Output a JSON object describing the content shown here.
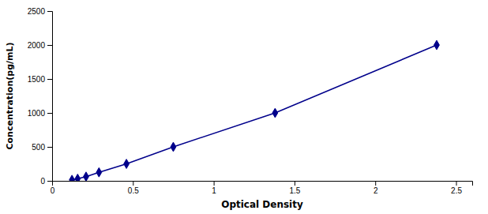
{
  "chart_data": {
    "type": "line",
    "x": [
      0.123,
      0.158,
      0.21,
      0.29,
      0.46,
      0.75,
      1.38,
      2.38
    ],
    "values": [
      15,
      31,
      62,
      125,
      250,
      500,
      1000,
      2000
    ],
    "color": "#00008B",
    "marker": "diamond",
    "xlabel": "Optical Density",
    "ylabel": "Concentration(pg/mL)",
    "xlim": [
      0.0,
      2.6
    ],
    "ylim": [
      0,
      2500
    ],
    "xticks": [
      0,
      0.5,
      1,
      1.5,
      2,
      2.5
    ],
    "yticks": [
      0,
      500,
      1000,
      1500,
      2000,
      2500
    ],
    "grid": false
  }
}
